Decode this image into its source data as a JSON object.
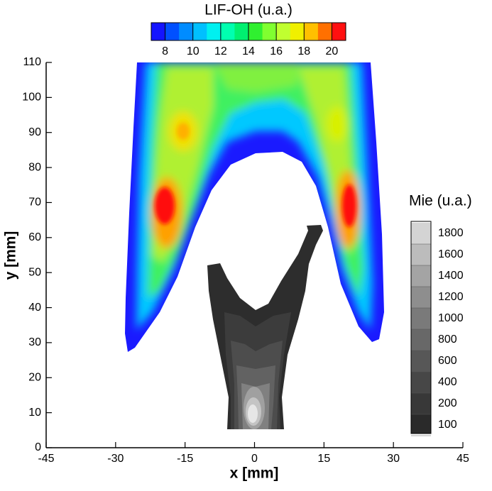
{
  "chart_data": {
    "type": "contour",
    "xlabel": "x [mm]",
    "ylabel": "y [mm]",
    "xlim": [
      -45,
      45
    ],
    "xticks": [
      -45,
      -30,
      -15,
      0,
      15,
      30,
      45
    ],
    "ylim": [
      0,
      110
    ],
    "yticks": [
      0,
      10,
      20,
      30,
      40,
      50,
      60,
      70,
      80,
      90,
      100,
      110
    ],
    "colorbars": [
      {
        "title": "LIF-OH (u.a.)",
        "orientation": "horizontal",
        "clim": [
          7,
          21
        ],
        "ticks": [
          8,
          10,
          12,
          14,
          16,
          18,
          20
        ],
        "colors": [
          "#1414ff",
          "#0050ff",
          "#008cff",
          "#00c0ff",
          "#00f0f0",
          "#00ffb0",
          "#00f070",
          "#30f030",
          "#80ff30",
          "#c0ff30",
          "#f0f000",
          "#ffc000",
          "#ff7000",
          "#ff1010"
        ]
      },
      {
        "title": "Mie (u.a.)",
        "orientation": "vertical",
        "ticks": [
          100,
          200,
          400,
          600,
          800,
          1000,
          1200,
          1400,
          1600,
          1800
        ],
        "colors": [
          "#2a2a2a",
          "#383838",
          "#474747",
          "#575757",
          "#686868",
          "#7a7a7a",
          "#8e8e8e",
          "#a4a4a4",
          "#bcbcbc",
          "#d4d4d4"
        ]
      }
    ]
  }
}
